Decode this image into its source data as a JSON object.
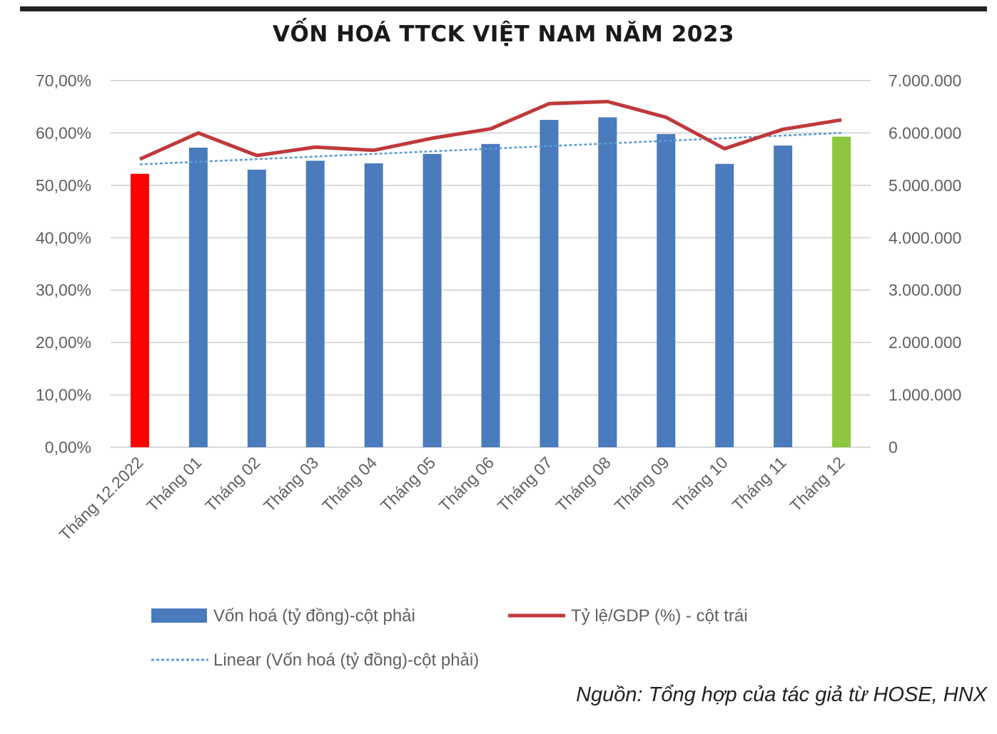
{
  "title": "VỐN HOÁ TTCK VIỆT NAM NĂM 2023",
  "source": "Nguồn: Tổng hợp của tác giả từ HOSE, HNX",
  "colors": {
    "bar": "#4a7bbd",
    "bar_first": "#ff0000",
    "bar_last": "#8dc63f",
    "line": "#c0393b",
    "trend": "#5b9bd5",
    "grid": "#d9d9d9"
  },
  "chart_data": {
    "type": "bar",
    "categories": [
      "Tháng 12.2022",
      "Tháng 01",
      "Tháng 02",
      "Tháng 03",
      "Tháng 04",
      "Tháng 05",
      "Tháng 06",
      "Tháng 07",
      "Tháng 08",
      "Tháng 09",
      "Tháng 10",
      "Tháng 11",
      "Tháng 12"
    ],
    "left_axis": {
      "ylim": [
        0,
        0.7
      ],
      "ticks": [
        "0,00%",
        "10,00%",
        "20,00%",
        "30,00%",
        "40,00%",
        "50,00%",
        "60,00%",
        "70,00%"
      ]
    },
    "right_axis": {
      "ylim": [
        0,
        7000000
      ],
      "ticks": [
        "0",
        "1.000.000",
        "2.000.000",
        "3.000.000",
        "4.000.000",
        "5.000.000",
        "6.000.000",
        "7.000.000"
      ]
    },
    "grid": true,
    "legend_position": "bottom",
    "series": [
      {
        "name": "Vốn hoá (tỷ đồng)-cột phải",
        "type": "bar",
        "axis": "right",
        "values": [
          5220000,
          5720000,
          5300000,
          5470000,
          5420000,
          5600000,
          5790000,
          6250000,
          6300000,
          5980000,
          5410000,
          5760000,
          5930000
        ]
      },
      {
        "name": "Tỷ lệ/GDP (%) - cột trái",
        "type": "line",
        "axis": "left",
        "values": [
          0.55,
          0.6,
          0.557,
          0.573,
          0.567,
          0.59,
          0.608,
          0.656,
          0.66,
          0.63,
          0.57,
          0.607,
          0.625
        ]
      },
      {
        "name": "Linear (Vốn hoá (tỷ đồng)-cột phải)",
        "type": "trendline",
        "axis": "right",
        "values": [
          5400000,
          5450000,
          5500000,
          5550000,
          5600000,
          5650000,
          5700000,
          5750000,
          5800000,
          5850000,
          5900000,
          5950000,
          6000000
        ]
      }
    ]
  }
}
